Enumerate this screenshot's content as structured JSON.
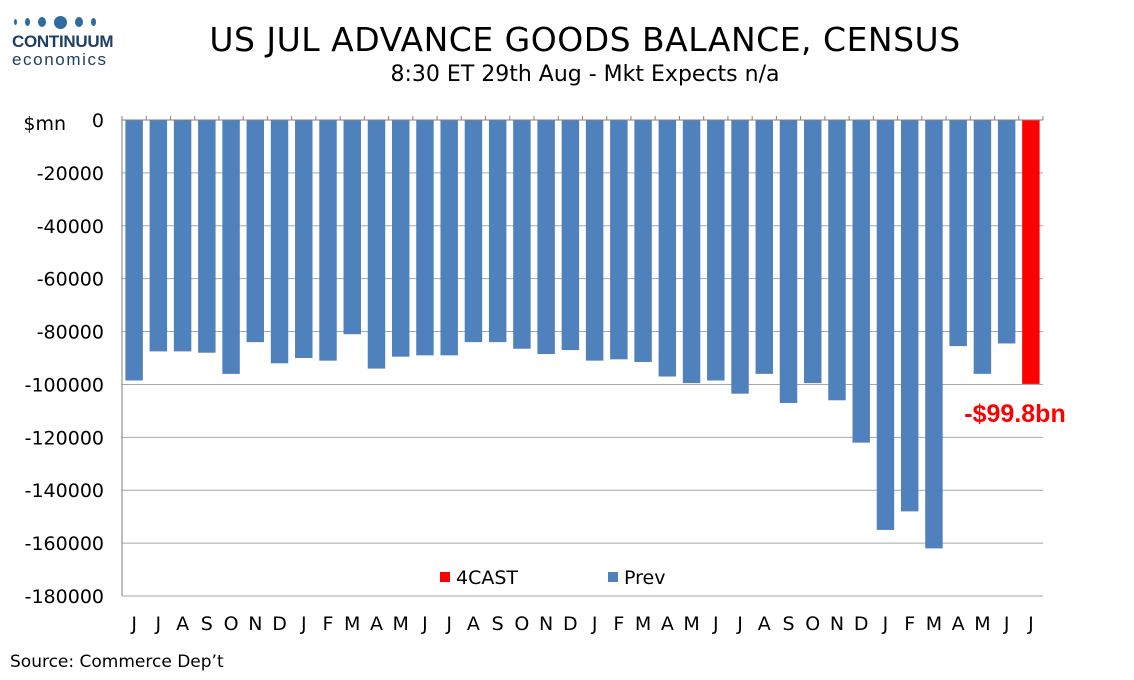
{
  "logo": {
    "line1": "CONTINUUM",
    "line2": "economics"
  },
  "header": {
    "title": "US JUL ADVANCE GOODS BALANCE, CENSUS",
    "subtitle": "8:30 ET 29th Aug - Mkt Expects n/a"
  },
  "source": "Source: Commerce Dep’t",
  "colors": {
    "prev": "#4f81bd",
    "forecast": "#ff0000",
    "grid": "#a6a6a6",
    "logo": "#1d3f66"
  },
  "chart_data": {
    "type": "bar",
    "ylabel": "$mn",
    "ylim": [
      -180000,
      0
    ],
    "yticks": [
      0,
      -20000,
      -40000,
      -60000,
      -80000,
      -100000,
      -120000,
      -140000,
      -160000,
      -180000
    ],
    "grid": true,
    "legend_position": "bottom-center",
    "categories": [
      "J",
      "J",
      "A",
      "S",
      "O",
      "N",
      "D",
      "J",
      "F",
      "M",
      "A",
      "M",
      "J",
      "J",
      "A",
      "S",
      "O",
      "N",
      "D",
      "J",
      "F",
      "M",
      "A",
      "M",
      "J",
      "J",
      "A",
      "S",
      "O",
      "N",
      "D",
      "J",
      "F",
      "M",
      "A",
      "M",
      "J",
      "J"
    ],
    "series": [
      {
        "name": "4CAST",
        "color": "#ff0000",
        "values": [
          null,
          null,
          null,
          null,
          null,
          null,
          null,
          null,
          null,
          null,
          null,
          null,
          null,
          null,
          null,
          null,
          null,
          null,
          null,
          null,
          null,
          null,
          null,
          null,
          null,
          null,
          null,
          null,
          null,
          null,
          null,
          null,
          null,
          null,
          null,
          null,
          null,
          -99800
        ]
      },
      {
        "name": "Prev",
        "color": "#4f81bd",
        "values": [
          -98500,
          -87500,
          -87500,
          -88000,
          -96000,
          -84000,
          -92000,
          -90000,
          -91000,
          -81000,
          -94000,
          -89500,
          -89000,
          -89000,
          -84000,
          -84000,
          -86500,
          -88500,
          -87000,
          -91000,
          -90500,
          -91500,
          -97000,
          -99500,
          -98500,
          -103500,
          -96000,
          -107000,
          -99500,
          -106000,
          -122000,
          -155000,
          -148000,
          -162000,
          -85500,
          -96000,
          -84500,
          null
        ]
      }
    ],
    "annotation": {
      "text": "-$99.8bn",
      "color": "#ff0000"
    }
  }
}
